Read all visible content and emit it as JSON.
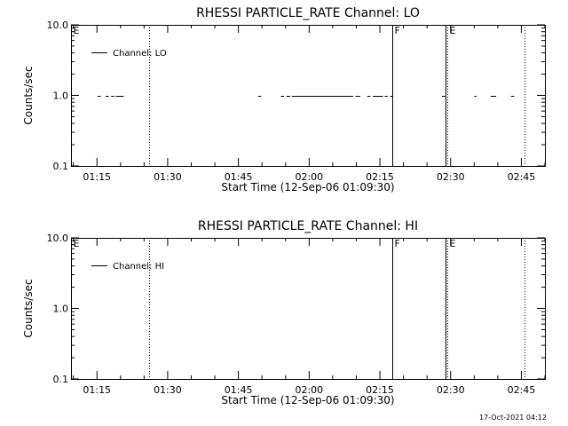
{
  "chart_data": [
    {
      "type": "line",
      "title": "RHESSI PARTICLE_RATE Channel: LO",
      "xlabel": "Start Time (12-Sep-06 01:09:30)",
      "ylabel": "Counts/sec",
      "yscale": "log",
      "ylim": [
        0.1,
        10.0
      ],
      "yticks": [
        {
          "v": 0.1,
          "label": "0.1"
        },
        {
          "v": 1.0,
          "label": "1.0"
        },
        {
          "v": 10.0,
          "label": "10.0"
        }
      ],
      "xlim": [
        "01:09:30",
        "02:50:00"
      ],
      "xticks": [
        "01:15",
        "01:30",
        "01:45",
        "02:00",
        "02:15",
        "02:30",
        "02:45"
      ],
      "legend": {
        "label": "Channel: LO",
        "placement": "top-left"
      },
      "series": [
        {
          "name": "Channel: LO",
          "segments": [
            {
              "start": "01:15:10",
              "end": "01:15:50",
              "value": 1.0
            },
            {
              "start": "01:16:50",
              "end": "01:17:30",
              "value": 1.0
            },
            {
              "start": "01:18:00",
              "end": "01:18:40",
              "value": 1.0
            },
            {
              "start": "01:19:00",
              "end": "01:20:40",
              "value": 1.0
            },
            {
              "start": "01:49:10",
              "end": "01:49:50",
              "value": 1.0
            },
            {
              "start": "01:54:00",
              "end": "01:54:40",
              "value": 1.0
            },
            {
              "start": "01:55:10",
              "end": "01:56:00",
              "value": 1.0
            },
            {
              "start": "01:56:20",
              "end": "02:09:20",
              "value": 1.0
            },
            {
              "start": "02:09:50",
              "end": "02:10:50",
              "value": 1.0
            },
            {
              "start": "02:12:20",
              "end": "02:13:00",
              "value": 1.0
            },
            {
              "start": "02:13:30",
              "end": "02:15:40",
              "value": 1.0
            },
            {
              "start": "02:16:00",
              "end": "02:16:40",
              "value": 1.0
            },
            {
              "start": "02:17:10",
              "end": "02:17:40",
              "value": 1.0
            },
            {
              "start": "02:28:10",
              "end": "02:28:50",
              "value": 1.0
            },
            {
              "start": "02:35:00",
              "end": "02:35:30",
              "value": 1.0
            },
            {
              "start": "02:38:30",
              "end": "02:39:40",
              "value": 1.0
            },
            {
              "start": "02:42:50",
              "end": "02:43:30",
              "value": 1.0
            }
          ]
        }
      ],
      "markers": [
        {
          "time": "01:09:30",
          "style": "dotted",
          "label": "E"
        },
        {
          "time": "01:26:00",
          "style": "dotted",
          "label": ""
        },
        {
          "time": "02:17:40",
          "style": "solid",
          "label": "F"
        },
        {
          "time": "02:29:00",
          "style": "solid",
          "label": ""
        },
        {
          "time": "02:29:20",
          "style": "dotted",
          "label": "E"
        },
        {
          "time": "02:45:40",
          "style": "dotted",
          "label": ""
        }
      ]
    },
    {
      "type": "line",
      "title": "RHESSI PARTICLE_RATE Channel: HI",
      "xlabel": "Start Time (12-Sep-06 01:09:30)",
      "ylabel": "Counts/sec",
      "yscale": "log",
      "ylim": [
        0.1,
        10.0
      ],
      "yticks": [
        {
          "v": 0.1,
          "label": "0.1"
        },
        {
          "v": 1.0,
          "label": "1.0"
        },
        {
          "v": 10.0,
          "label": "10.0"
        }
      ],
      "xlim": [
        "01:09:30",
        "02:50:00"
      ],
      "xticks": [
        "01:15",
        "01:30",
        "01:45",
        "02:00",
        "02:15",
        "02:30",
        "02:45"
      ],
      "legend": {
        "label": "Channel: HI",
        "placement": "top-left"
      },
      "series": [
        {
          "name": "Channel: HI",
          "segments": []
        }
      ],
      "markers": [
        {
          "time": "01:09:30",
          "style": "dotted",
          "label": "E"
        },
        {
          "time": "01:26:00",
          "style": "dotted",
          "label": ""
        },
        {
          "time": "02:17:40",
          "style": "solid",
          "label": "F"
        },
        {
          "time": "02:29:00",
          "style": "solid",
          "label": ""
        },
        {
          "time": "02:29:20",
          "style": "dotted",
          "label": "E"
        },
        {
          "time": "02:45:40",
          "style": "dotted",
          "label": ""
        }
      ]
    }
  ],
  "footer": {
    "timestamp": "17-Oct-2021 04:12"
  }
}
